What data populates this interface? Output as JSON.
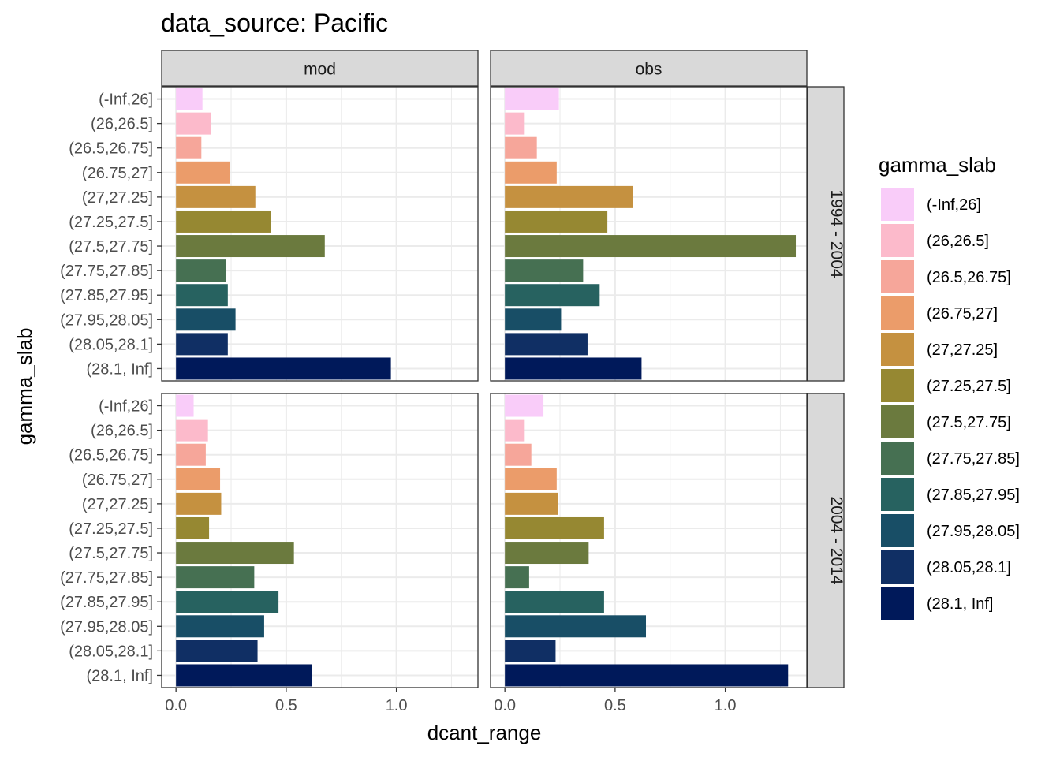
{
  "chart_data": {
    "type": "bar",
    "title": "data_source: Pacific",
    "xlabel": "dcant_range",
    "ylabel": "gamma_slab",
    "xlim": [
      -0.065,
      1.37
    ],
    "x_ticks": [
      {
        "value": 0,
        "label": "0.0"
      },
      {
        "value": 0.5,
        "label": "0.5"
      },
      {
        "value": 1.0,
        "label": "1.0"
      }
    ],
    "grid": true,
    "legend_position": "right",
    "legend_title": "gamma_slab",
    "col_facets": [
      "mod",
      "obs"
    ],
    "row_facets": [
      "1994 - 2004",
      "2004 - 2014"
    ],
    "categories": [
      "(-Inf,26]",
      "(26,26.5]",
      "(26.5,26.75]",
      "(26.75,27]",
      "(27,27.25]",
      "(27.25,27.5]",
      "(27.5,27.75]",
      "(27.75,27.85]",
      "(27.85,27.95]",
      "(27.95,28.05]",
      "(28.05,28.1]",
      "(28.1, Inf]"
    ],
    "colors": [
      "#F9CCF9",
      "#FCBACB",
      "#F6A69A",
      "#EB9C6A",
      "#C59140",
      "#968832",
      "#6B7A3E",
      "#467052",
      "#276260",
      "#184E66",
      "#102F64",
      "#00195A"
    ],
    "panels": [
      {
        "row": "1994 - 2004",
        "col": "mod",
        "values": [
          0.12,
          0.16,
          0.115,
          0.245,
          0.36,
          0.43,
          0.675,
          0.225,
          0.235,
          0.27,
          0.235,
          0.975
        ]
      },
      {
        "row": "1994 - 2004",
        "col": "obs",
        "values": [
          0.245,
          0.09,
          0.145,
          0.235,
          0.58,
          0.465,
          1.32,
          0.355,
          0.43,
          0.255,
          0.375,
          0.62
        ]
      },
      {
        "row": "2004 - 2014",
        "col": "mod",
        "values": [
          0.08,
          0.145,
          0.135,
          0.2,
          0.205,
          0.15,
          0.535,
          0.355,
          0.465,
          0.4,
          0.37,
          0.615
        ]
      },
      {
        "row": "2004 - 2014",
        "col": "obs",
        "values": [
          0.175,
          0.09,
          0.12,
          0.235,
          0.24,
          0.45,
          0.38,
          0.11,
          0.45,
          0.64,
          0.23,
          1.285
        ]
      }
    ]
  }
}
